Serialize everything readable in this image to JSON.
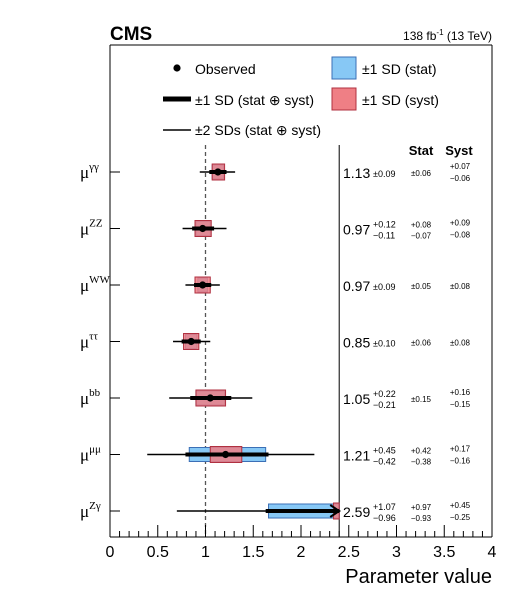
{
  "header": {
    "experiment": "CMS",
    "lumi_sup": "138 fb",
    "lumi_exp": "-1",
    "lumi_rest": " (13 TeV)"
  },
  "legend": {
    "observed": "Observed",
    "stat_box": "±1 SD (stat)",
    "syst_box": "±1 SD (syst)",
    "sd1": "±1 SD (stat ⊕ syst)",
    "sd2": "±2 SDs (stat ⊕ syst)"
  },
  "columns": {
    "stat": "Stat",
    "syst": "Syst"
  },
  "colors": {
    "stat_fill": "#87c8f5",
    "stat_edge": "#3b6fb6",
    "syst_fill": "#ef7f85",
    "syst_edge": "#b03040",
    "ref_line": "#555555"
  },
  "chart_data": {
    "type": "forest",
    "xlabel": "Parameter value",
    "xlim": [
      0,
      4
    ],
    "x_ticks": [
      "0",
      "0.5",
      "1",
      "1.5",
      "2",
      "2.5",
      "3",
      "3.5",
      "4"
    ],
    "reference_line": 1,
    "plot_boundary": 2.4,
    "parameters": [
      {
        "base": "μ",
        "sup": "γγ",
        "value": 1.13,
        "value_label": "1.13",
        "total_sym": "±0.09",
        "stat_sym": "±0.06",
        "syst_up": "+0.07",
        "syst_down": "−0.06",
        "stat": [
          -0.06,
          0.06
        ],
        "syst": [
          -0.06,
          0.07
        ],
        "sd1": [
          -0.09,
          0.09
        ],
        "sd2": [
          -0.19,
          0.18
        ]
      },
      {
        "base": "μ",
        "sup": "ZZ",
        "value": 0.97,
        "value_label": "0.97",
        "total_up": "+0.12",
        "total_down": "−0.11",
        "stat_up": "+0.08",
        "stat_down": "−0.07",
        "syst_up": "+0.09",
        "syst_down": "−0.08",
        "stat": [
          -0.07,
          0.08
        ],
        "syst": [
          -0.08,
          0.09
        ],
        "sd1": [
          -0.11,
          0.12
        ],
        "sd2": [
          -0.21,
          0.25
        ]
      },
      {
        "base": "μ",
        "sup": "WW",
        "value": 0.97,
        "value_label": "0.97",
        "total_sym": "±0.09",
        "stat_sym": "±0.05",
        "syst_sym": "±0.08",
        "stat": [
          -0.05,
          0.05
        ],
        "syst": [
          -0.08,
          0.08
        ],
        "sd1": [
          -0.09,
          0.09
        ],
        "sd2": [
          -0.18,
          0.18
        ]
      },
      {
        "base": "μ",
        "sup": "ττ",
        "value": 0.85,
        "value_label": "0.85",
        "total_sym": "±0.10",
        "stat_sym": "±0.06",
        "syst_sym": "±0.08",
        "stat": [
          -0.06,
          0.06
        ],
        "syst": [
          -0.08,
          0.08
        ],
        "sd1": [
          -0.1,
          0.1
        ],
        "sd2": [
          -0.19,
          0.2
        ]
      },
      {
        "base": "μ",
        "sup": "bb",
        "value": 1.05,
        "value_label": "1.05",
        "total_up": "+0.22",
        "total_down": "−0.21",
        "stat_sym": "±0.15",
        "syst_up": "+0.16",
        "syst_down": "−0.15",
        "stat": [
          -0.15,
          0.15
        ],
        "syst": [
          -0.15,
          0.16
        ],
        "sd1": [
          -0.21,
          0.22
        ],
        "sd2": [
          -0.43,
          0.44
        ]
      },
      {
        "base": "μ",
        "sup": "μμ",
        "value": 1.21,
        "value_label": "1.21",
        "total_up": "+0.45",
        "total_down": "−0.42",
        "stat_up": "+0.42",
        "stat_down": "−0.38",
        "syst_up": "+0.17",
        "syst_down": "−0.16",
        "stat": [
          -0.38,
          0.42
        ],
        "syst": [
          -0.16,
          0.17
        ],
        "sd1": [
          -0.42,
          0.45
        ],
        "sd2": [
          -0.82,
          0.93
        ]
      },
      {
        "base": "μ",
        "sup": "Zγ",
        "value": 2.59,
        "value_label": "2.59",
        "total_up": "+1.07",
        "total_down": "−0.96",
        "stat_up": "+0.97",
        "stat_down": "−0.93",
        "syst_up": "+0.45",
        "syst_down": "−0.25",
        "stat": [
          -0.93,
          0.97
        ],
        "syst": [
          -0.25,
          0.45
        ],
        "sd1": [
          -0.96,
          1.07
        ],
        "sd2": [
          -1.89,
          2.2
        ]
      }
    ]
  }
}
